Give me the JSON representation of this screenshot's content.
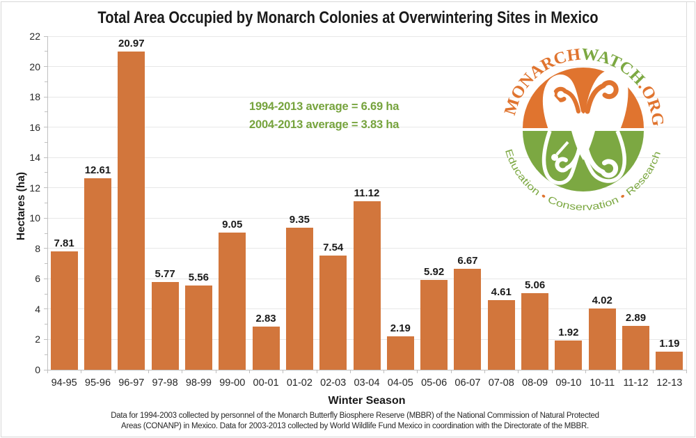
{
  "title": "Total Area Occupied by Monarch Colonies at Overwintering Sites in Mexico",
  "chart_data": {
    "type": "bar",
    "categories": [
      "94-95",
      "95-96",
      "96-97",
      "97-98",
      "98-99",
      "99-00",
      "00-01",
      "01-02",
      "02-03",
      "03-04",
      "04-05",
      "05-06",
      "06-07",
      "07-08",
      "08-09",
      "09-10",
      "10-11",
      "11-12",
      "12-13"
    ],
    "values": [
      7.81,
      12.61,
      20.97,
      5.77,
      5.56,
      9.05,
      2.83,
      9.35,
      7.54,
      11.12,
      2.19,
      5.92,
      6.67,
      4.61,
      5.06,
      1.92,
      4.02,
      2.89,
      1.19
    ],
    "title": "Total Area Occupied by Monarch Colonies at Overwintering Sites in Mexico",
    "xlabel": "Winter Season",
    "ylabel": "Hectares (ha)",
    "ylim": [
      0,
      22
    ],
    "ytick_step": 2,
    "grid": "horizontal",
    "bar_color": "#d2763c",
    "legend": "none"
  },
  "annotation": {
    "line1": "1994-2013 average = 6.69 ha",
    "line2": "2004-2013 average = 3.83 ha",
    "color": "#76a33d"
  },
  "logo": {
    "brand_parts": [
      "MONARCH",
      "WATCH",
      ".ORG"
    ],
    "tagline_parts": [
      "Education",
      " • ",
      "Conservation",
      " • ",
      "Research"
    ],
    "orange": "#e0742f",
    "green": "#7ca842"
  },
  "footer": {
    "line1": "Data for 1994-2003 collected by personnel of the Monarch Butterfly Biosphere Reserve (MBBR) of the National Commission of Natural Protected",
    "line2": "Areas (CONANP) in Mexico. Data for 2003-2013 collected by World Wildlife Fund Mexico in coordination with the Directorate of the MBBR."
  }
}
